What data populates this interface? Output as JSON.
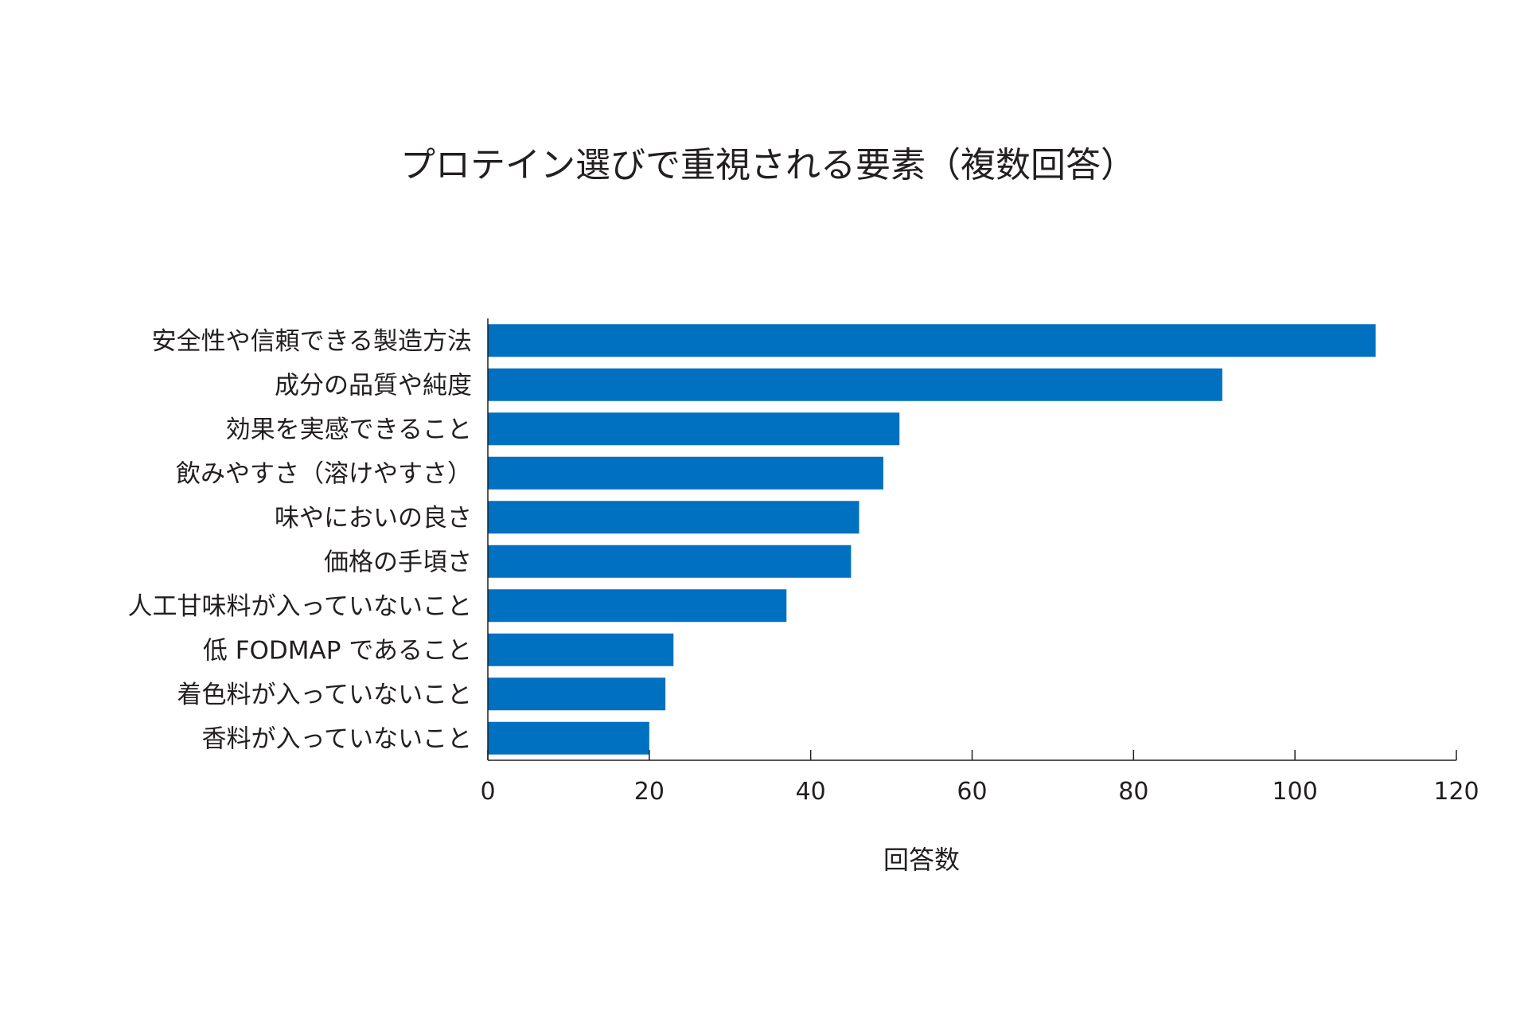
{
  "chart_data": {
    "type": "bar",
    "orientation": "horizontal",
    "title": "プロテイン選びで重視される要素（複数回答）",
    "xlabel": "回答数",
    "ylabel": "",
    "categories": [
      "安全性や信頼できる製造方法",
      "成分の品質や純度",
      "効果を実感できること",
      "飲みやすさ（溶けやすさ）",
      "味やにおいの良さ",
      "価格の手頃さ",
      "人工甘味料が入っていないこと",
      "低 FODMAP であること",
      "着色料が入っていないこと",
      "香料が入っていないこと"
    ],
    "values": [
      110,
      91,
      51,
      49,
      46,
      45,
      37,
      23,
      22,
      20
    ],
    "xlim": [
      0,
      120
    ],
    "xticks": [
      "0",
      "20",
      "40",
      "60",
      "80",
      "100",
      "120"
    ],
    "grid": false,
    "legend": "none",
    "bar_color": "#0070c0"
  }
}
